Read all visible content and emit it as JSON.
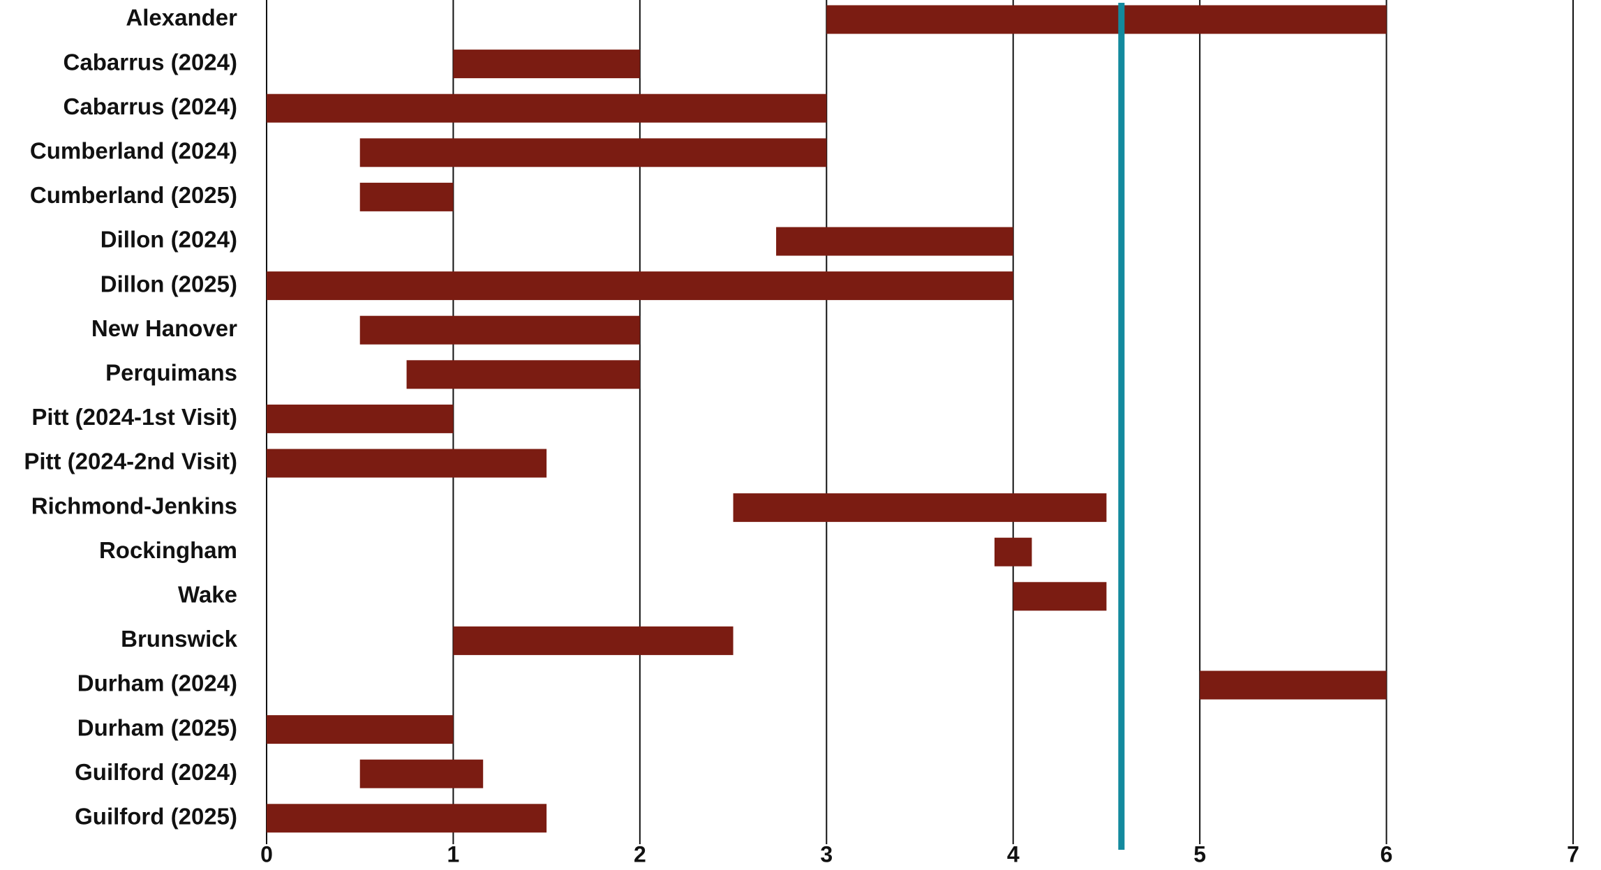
{
  "chart_data": {
    "type": "floating_bar",
    "categories": [
      "Alexander",
      "Cabarrus (2024)",
      "Cabarrus (2024)",
      "Cumberland (2024)",
      "Cumberland (2025)",
      "Dillon (2024)",
      "Dillon (2025)",
      "New Hanover",
      "Perquimans",
      "Pitt (2024-1st Visit)",
      "Pitt (2024-2nd Visit)",
      "Richmond-Jenkins",
      "Rockingham",
      "Wake",
      "Brunswick",
      "Durham (2024)",
      "Durham (2025)",
      "Guilford (2024)",
      "Guilford (2025)"
    ],
    "starts": [
      3,
      1,
      0,
      0.5,
      0.5,
      2.73,
      0,
      0.5,
      0.75,
      0,
      0,
      2.5,
      3.9,
      4,
      1,
      5,
      0,
      0.5,
      0
    ],
    "ends": [
      6,
      2,
      3,
      3,
      1,
      4,
      4,
      2,
      2,
      1,
      1.5,
      4.5,
      4.1,
      4.5,
      2.5,
      6,
      1,
      1.16,
      1.5
    ],
    "color": "#7b1c12",
    "reference_line": {
      "value": 4.58,
      "color": "#138a9e"
    },
    "xlim": [
      0,
      7
    ],
    "xticks": [
      0,
      1,
      2,
      3,
      4,
      5,
      6,
      7
    ],
    "grid": true
  }
}
